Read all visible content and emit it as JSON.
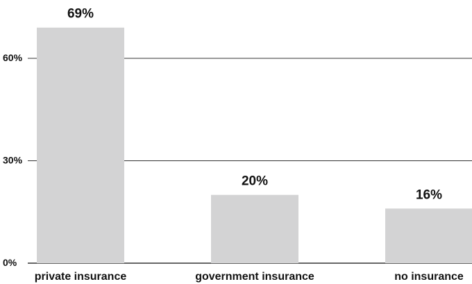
{
  "chart_data": {
    "type": "bar",
    "categories": [
      "private insurance",
      "government insurance",
      "no insurance"
    ],
    "values": [
      69,
      20,
      16
    ],
    "value_labels": [
      "69%",
      "20%",
      "16%"
    ],
    "ylim": [
      0,
      75
    ],
    "yticks": [
      0,
      30,
      60
    ],
    "ytick_labels": [
      "0%",
      "30%",
      "60%"
    ],
    "grid": true,
    "bar_color": "#d3d3d4",
    "grid_color": "#333333",
    "text_color": "#111111"
  }
}
